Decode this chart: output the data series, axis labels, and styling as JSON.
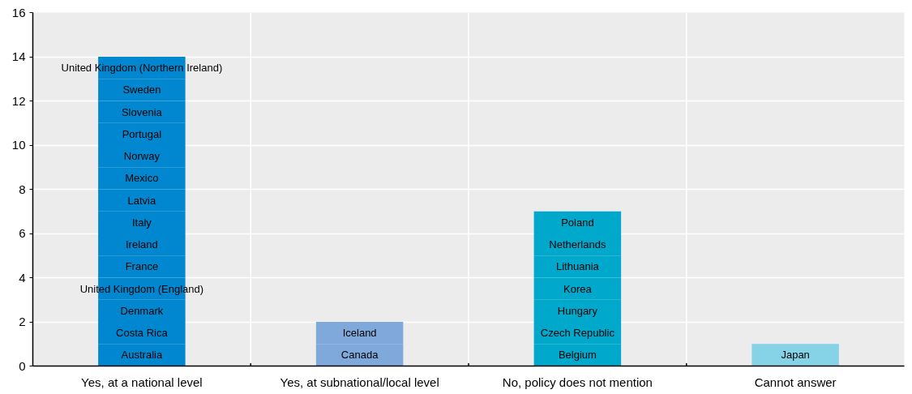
{
  "chart_data": {
    "type": "bar",
    "stacked": true,
    "categories": [
      "Yes, at a national level",
      "Yes, at subnational/local level",
      "No, policy does not mention",
      "Cannot answer"
    ],
    "ylim": [
      0,
      16
    ],
    "yticks": [
      0,
      2,
      4,
      6,
      8,
      10,
      12,
      14,
      16
    ],
    "grid": true,
    "series": [
      {
        "name": "Australia",
        "color": "#0087cf",
        "values": [
          1,
          null,
          null,
          null
        ]
      },
      {
        "name": "Costa Rica",
        "color": "#0087cf",
        "values": [
          1,
          null,
          null,
          null
        ]
      },
      {
        "name": "Denmark",
        "color": "#0087cf",
        "values": [
          1,
          null,
          null,
          null
        ]
      },
      {
        "name": "United Kingdom (England)",
        "color": "#0087cf",
        "values": [
          1,
          null,
          null,
          null
        ]
      },
      {
        "name": "France",
        "color": "#0087cf",
        "values": [
          1,
          null,
          null,
          null
        ]
      },
      {
        "name": "Ireland",
        "color": "#0087cf",
        "values": [
          1,
          null,
          null,
          null
        ]
      },
      {
        "name": "Italy",
        "color": "#0087cf",
        "values": [
          1,
          null,
          null,
          null
        ]
      },
      {
        "name": "Latvia",
        "color": "#0087cf",
        "values": [
          1,
          null,
          null,
          null
        ]
      },
      {
        "name": "Mexico",
        "color": "#0087cf",
        "values": [
          1,
          null,
          null,
          null
        ]
      },
      {
        "name": "Norway",
        "color": "#0087cf",
        "values": [
          1,
          null,
          null,
          null
        ]
      },
      {
        "name": "Portugal",
        "color": "#0087cf",
        "values": [
          1,
          null,
          null,
          null
        ]
      },
      {
        "name": "Slovenia",
        "color": "#0087cf",
        "values": [
          1,
          null,
          null,
          null
        ]
      },
      {
        "name": "Sweden",
        "color": "#0087cf",
        "values": [
          1,
          null,
          null,
          null
        ]
      },
      {
        "name": "United Kingdom (Northern Ireland)",
        "color": "#0087cf",
        "values": [
          1,
          null,
          null,
          null
        ]
      },
      {
        "name": "Canada",
        "color": "#7fa8db",
        "values": [
          null,
          1,
          null,
          null
        ]
      },
      {
        "name": "Iceland",
        "color": "#7fa8db",
        "values": [
          null,
          1,
          null,
          null
        ]
      },
      {
        "name": "Belgium",
        "color": "#00a8cb",
        "values": [
          null,
          null,
          1,
          null
        ]
      },
      {
        "name": "Czech Republic",
        "color": "#00a8cb",
        "values": [
          null,
          null,
          1,
          null
        ]
      },
      {
        "name": "Hungary",
        "color": "#00a8cb",
        "values": [
          null,
          null,
          1,
          null
        ]
      },
      {
        "name": "Korea",
        "color": "#00a8cb",
        "values": [
          null,
          null,
          1,
          null
        ]
      },
      {
        "name": "Lithuania",
        "color": "#00a8cb",
        "values": [
          null,
          null,
          1,
          null
        ]
      },
      {
        "name": "Netherlands",
        "color": "#00a8cb",
        "values": [
          null,
          null,
          1,
          null
        ]
      },
      {
        "name": "Poland",
        "color": "#00a8cb",
        "values": [
          null,
          null,
          1,
          null
        ]
      },
      {
        "name": "Japan",
        "color": "#86d3e7",
        "values": [
          null,
          null,
          null,
          1
        ]
      }
    ]
  }
}
